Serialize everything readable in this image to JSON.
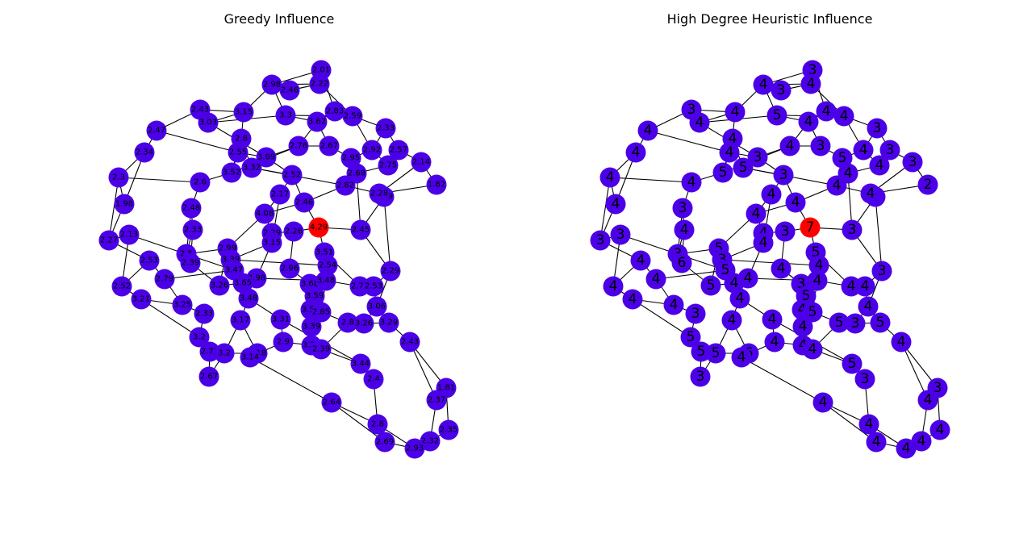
{
  "colors": {
    "default_node": "#4b00e8",
    "seed_node": "#ff0000",
    "edge": "#000000",
    "background": "#ffffff"
  },
  "panels": [
    {
      "title": "Greedy Influence",
      "nodes": [
        {
          "id": "a1",
          "label": "2.01"
        },
        {
          "id": "a2",
          "label": "2.22"
        },
        {
          "id": "a3",
          "label": "2.98"
        },
        {
          "id": "a4",
          "label": "2.46"
        },
        {
          "id": "a5",
          "label": "2.43"
        },
        {
          "id": "a6",
          "label": "3.15"
        },
        {
          "id": "a7",
          "label": "3.03"
        },
        {
          "id": "a8",
          "label": "3.3"
        },
        {
          "id": "a9",
          "label": "2.83"
        },
        {
          "id": "a10",
          "label": "2.59"
        },
        {
          "id": "a11",
          "label": "3.62"
        },
        {
          "id": "a12",
          "label": "2.47"
        },
        {
          "id": "a13",
          "label": "2.8"
        },
        {
          "id": "a14",
          "label": "2.33"
        },
        {
          "id": "a15",
          "label": "2.34"
        },
        {
          "id": "a16",
          "label": "2.76"
        },
        {
          "id": "a17",
          "label": "2.67"
        },
        {
          "id": "a18",
          "label": "2.55"
        },
        {
          "id": "a19",
          "label": "3.69"
        },
        {
          "id": "a20",
          "label": "2.95"
        },
        {
          "id": "a21",
          "label": "2.92"
        },
        {
          "id": "a22",
          "label": "2.57"
        },
        {
          "id": "a23",
          "label": "2.3"
        },
        {
          "id": "a24",
          "label": "3.52"
        },
        {
          "id": "a25",
          "label": "3.32"
        },
        {
          "id": "a26",
          "label": "2.75"
        },
        {
          "id": "a27",
          "label": "2.14"
        },
        {
          "id": "a28",
          "label": "2.6"
        },
        {
          "id": "a29",
          "label": "2.52"
        },
        {
          "id": "a30",
          "label": "2.68"
        },
        {
          "id": "a31",
          "label": "1.98"
        },
        {
          "id": "a32",
          "label": "2.82"
        },
        {
          "id": "a33",
          "label": "1.82"
        },
        {
          "id": "a34",
          "label": "2.17"
        },
        {
          "id": "a35",
          "label": "2.46"
        },
        {
          "id": "a36",
          "label": "2.48"
        },
        {
          "id": "a37",
          "label": "2.89"
        },
        {
          "id": "a38",
          "label": "2.28"
        },
        {
          "id": "a39",
          "label": "4.08"
        },
        {
          "id": "a40",
          "label": "4.29"
        },
        {
          "id": "a41",
          "label": "2.45"
        },
        {
          "id": "a42",
          "label": "2.27"
        },
        {
          "id": "a43",
          "label": "2.13"
        },
        {
          "id": "a44",
          "label": "2.33"
        },
        {
          "id": "a45",
          "label": "2.29"
        },
        {
          "id": "a46",
          "label": "2.26"
        },
        {
          "id": "a47",
          "label": "3.15"
        },
        {
          "id": "a48",
          "label": "2.99"
        },
        {
          "id": "a49",
          "label": "2.5"
        },
        {
          "id": "a50",
          "label": "3.51"
        },
        {
          "id": "a51",
          "label": "2.53"
        },
        {
          "id": "a52",
          "label": "2.39"
        },
        {
          "id": "a53",
          "label": "3.39"
        },
        {
          "id": "a54",
          "label": "2.54"
        },
        {
          "id": "a55",
          "label": "3.47"
        },
        {
          "id": "a56",
          "label": "2.96"
        },
        {
          "id": "a57",
          "label": "2.29"
        },
        {
          "id": "a58",
          "label": "2.79"
        },
        {
          "id": "a59",
          "label": "2.98"
        },
        {
          "id": "a60",
          "label": "3.26"
        },
        {
          "id": "a61",
          "label": "3.65"
        },
        {
          "id": "a62",
          "label": "3.68"
        },
        {
          "id": "a63",
          "label": "3.48"
        },
        {
          "id": "a64",
          "label": "2.72"
        },
        {
          "id": "a65",
          "label": "2.53"
        },
        {
          "id": "a66",
          "label": "2.52"
        },
        {
          "id": "a67",
          "label": "3.21"
        },
        {
          "id": "a68",
          "label": "3.25"
        },
        {
          "id": "a69",
          "label": "3.48"
        },
        {
          "id": "a70",
          "label": "3.59"
        },
        {
          "id": "a71",
          "label": "3.06"
        },
        {
          "id": "a72",
          "label": "2.33"
        },
        {
          "id": "a73",
          "label": "3.57"
        },
        {
          "id": "a74",
          "label": "2.85"
        },
        {
          "id": "a75",
          "label": "3.17"
        },
        {
          "id": "a76",
          "label": "3.31"
        },
        {
          "id": "a77",
          "label": "2.8"
        },
        {
          "id": "a78",
          "label": "3.26"
        },
        {
          "id": "a79",
          "label": "3.29"
        },
        {
          "id": "a80",
          "label": "3.39"
        },
        {
          "id": "a81",
          "label": "3.2"
        },
        {
          "id": "a82",
          "label": "2.43"
        },
        {
          "id": "a83",
          "label": "2.9"
        },
        {
          "id": "a84",
          "label": "3.21"
        },
        {
          "id": "a85",
          "label": "2.72"
        },
        {
          "id": "a86",
          "label": "3.2"
        },
        {
          "id": "a87",
          "label": "3.18"
        },
        {
          "id": "a88",
          "label": "3.14"
        },
        {
          "id": "a89",
          "label": "2.39"
        },
        {
          "id": "a90",
          "label": "3.44"
        },
        {
          "id": "a91",
          "label": "2.67"
        },
        {
          "id": "a92",
          "label": "2.4"
        },
        {
          "id": "a93",
          "label": "1.81"
        },
        {
          "id": "a94",
          "label": "2.64"
        },
        {
          "id": "a95",
          "label": "2.37"
        },
        {
          "id": "a96",
          "label": "2.8"
        },
        {
          "id": "a97",
          "label": "2.35"
        },
        {
          "id": "a98",
          "label": "2.69"
        },
        {
          "id": "a99",
          "label": "2.32"
        },
        {
          "id": "a100",
          "label": "2.93"
        }
      ],
      "seed": "a40"
    },
    {
      "title": "High Degree Heuristic Influence",
      "nodes": [
        {
          "id": "b1",
          "label": "3"
        },
        {
          "id": "b2",
          "label": "4"
        },
        {
          "id": "b3",
          "label": "4"
        },
        {
          "id": "b4",
          "label": "3"
        },
        {
          "id": "b5",
          "label": "3"
        },
        {
          "id": "b6",
          "label": "4"
        },
        {
          "id": "b7",
          "label": "4"
        },
        {
          "id": "b8",
          "label": "5"
        },
        {
          "id": "b9",
          "label": "4"
        },
        {
          "id": "b10",
          "label": "4"
        },
        {
          "id": "b11",
          "label": "4"
        },
        {
          "id": "b12",
          "label": "4"
        },
        {
          "id": "b13",
          "label": "4"
        },
        {
          "id": "b14",
          "label": "3"
        },
        {
          "id": "b15",
          "label": "4"
        },
        {
          "id": "b16",
          "label": "4"
        },
        {
          "id": "b17",
          "label": "3"
        },
        {
          "id": "b18",
          "label": "4"
        },
        {
          "id": "b19",
          "label": "3"
        },
        {
          "id": "b20",
          "label": "5"
        },
        {
          "id": "b21",
          "label": "4"
        },
        {
          "id": "b22",
          "label": "3"
        },
        {
          "id": "b23",
          "label": "4"
        },
        {
          "id": "b24",
          "label": "5"
        },
        {
          "id": "b25",
          "label": "5"
        },
        {
          "id": "b26",
          "label": "4"
        },
        {
          "id": "b27",
          "label": "3"
        },
        {
          "id": "b28",
          "label": "4"
        },
        {
          "id": "b29",
          "label": "3"
        },
        {
          "id": "b30",
          "label": "4"
        },
        {
          "id": "b31",
          "label": "4"
        },
        {
          "id": "b32",
          "label": "4"
        },
        {
          "id": "b33",
          "label": "2"
        },
        {
          "id": "b34",
          "label": "4"
        },
        {
          "id": "b35",
          "label": "4"
        },
        {
          "id": "b36",
          "label": "3"
        },
        {
          "id": "b37",
          "label": "5"
        },
        {
          "id": "b38",
          "label": "4"
        },
        {
          "id": "b39",
          "label": "4"
        },
        {
          "id": "b40",
          "label": "7"
        },
        {
          "id": "b41",
          "label": "3"
        },
        {
          "id": "b42",
          "label": "3"
        },
        {
          "id": "b43",
          "label": "3"
        },
        {
          "id": "b44",
          "label": "4"
        },
        {
          "id": "b45",
          "label": "4"
        },
        {
          "id": "b46",
          "label": "3"
        },
        {
          "id": "b47",
          "label": "4"
        },
        {
          "id": "b48",
          "label": "5"
        },
        {
          "id": "b49",
          "label": "3"
        },
        {
          "id": "b50",
          "label": "5"
        },
        {
          "id": "b51",
          "label": "4"
        },
        {
          "id": "b52",
          "label": "6"
        },
        {
          "id": "b53",
          "label": "3"
        },
        {
          "id": "b54",
          "label": "4"
        },
        {
          "id": "b55",
          "label": "5"
        },
        {
          "id": "b56",
          "label": "4"
        },
        {
          "id": "b57",
          "label": "3"
        },
        {
          "id": "b58",
          "label": "4"
        },
        {
          "id": "b59",
          "label": "4"
        },
        {
          "id": "b60",
          "label": "5"
        },
        {
          "id": "b61",
          "label": "4"
        },
        {
          "id": "b62",
          "label": "3"
        },
        {
          "id": "b63",
          "label": "4"
        },
        {
          "id": "b64",
          "label": "4"
        },
        {
          "id": "b65",
          "label": "4"
        },
        {
          "id": "b66",
          "label": "4"
        },
        {
          "id": "b67",
          "label": "4"
        },
        {
          "id": "b68",
          "label": "4"
        },
        {
          "id": "b69",
          "label": "4"
        },
        {
          "id": "b70",
          "label": "5"
        },
        {
          "id": "b71",
          "label": "4"
        },
        {
          "id": "b72",
          "label": "3"
        },
        {
          "id": "b73",
          "label": "4"
        },
        {
          "id": "b74",
          "label": "5"
        },
        {
          "id": "b75",
          "label": "4"
        },
        {
          "id": "b76",
          "label": "4"
        },
        {
          "id": "b77",
          "label": "5"
        },
        {
          "id": "b78",
          "label": "3"
        },
        {
          "id": "b79",
          "label": "5"
        },
        {
          "id": "b80",
          "label": "4"
        },
        {
          "id": "b81",
          "label": "5"
        },
        {
          "id": "b82",
          "label": "4"
        },
        {
          "id": "b83",
          "label": "4"
        },
        {
          "id": "b84",
          "label": "4"
        },
        {
          "id": "b85",
          "label": "5"
        },
        {
          "id": "b86",
          "label": "5"
        },
        {
          "id": "b87",
          "label": "6"
        },
        {
          "id": "b88",
          "label": "4"
        },
        {
          "id": "b89",
          "label": "4"
        },
        {
          "id": "b90",
          "label": "5"
        },
        {
          "id": "b91",
          "label": "3"
        },
        {
          "id": "b92",
          "label": "3"
        },
        {
          "id": "b93",
          "label": "3"
        },
        {
          "id": "b94",
          "label": "4"
        },
        {
          "id": "b95",
          "label": "4"
        },
        {
          "id": "b96",
          "label": "4"
        },
        {
          "id": "b97",
          "label": "4"
        },
        {
          "id": "b98",
          "label": "4"
        },
        {
          "id": "b99",
          "label": "4"
        },
        {
          "id": "b100",
          "label": "4"
        }
      ],
      "seed": "b40"
    }
  ]
}
